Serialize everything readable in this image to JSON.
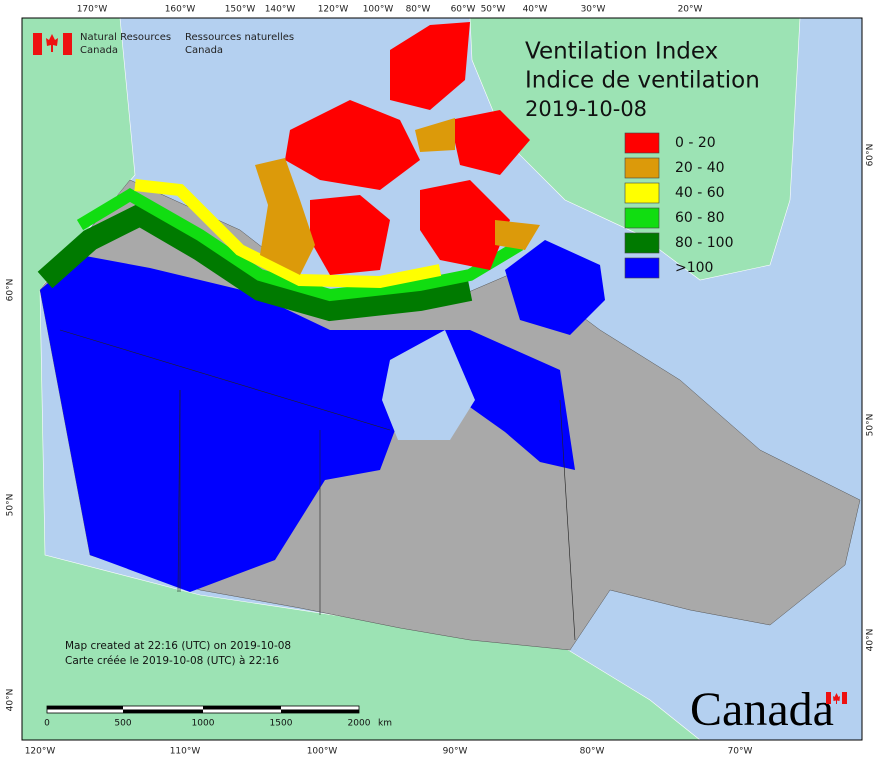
{
  "header": {
    "title_en": "Ventilation Index",
    "title_fr": "Indice de ventilation",
    "date": "2019-10-08"
  },
  "agency": {
    "en": [
      "Natural Resources",
      "Canada"
    ],
    "fr": [
      "Ressources naturelles",
      "Canada"
    ]
  },
  "legend": [
    {
      "label": "0 - 20",
      "color": "#ff0000"
    },
    {
      "label": "20 - 40",
      "color": "#dc9a0a"
    },
    {
      "label": "40 - 60",
      "color": "#ffff00"
    },
    {
      "label": "60 - 80",
      "color": "#11dd11"
    },
    {
      "label": "80 - 100",
      "color": "#007a00"
    },
    {
      "label": ">100",
      "color": "#0000ff"
    }
  ],
  "footer": {
    "created_en": "Map created at 22:16 (UTC) on 2019-10-08",
    "created_fr": "Carte créée le 2019-10-08 (UTC) à 22:16"
  },
  "scale_bar": {
    "labels": [
      "0",
      "500",
      "1000",
      "1500",
      "2000"
    ],
    "unit": "km"
  },
  "graticule": {
    "top": [
      "170°W",
      "160°W",
      "150°W",
      "140°W",
      "120°W",
      "100°W",
      "80°W",
      "60°W",
      "50°W",
      "40°W",
      "30°W",
      "20°W"
    ],
    "bottom": [
      "120°W",
      "110°W",
      "100°W",
      "90°W",
      "80°W",
      "70°W"
    ],
    "left": [
      "60°N",
      "50°N",
      "40°N"
    ],
    "right": [
      "60°N",
      "50°N",
      "40°N"
    ]
  },
  "wordmark": "Canada"
}
